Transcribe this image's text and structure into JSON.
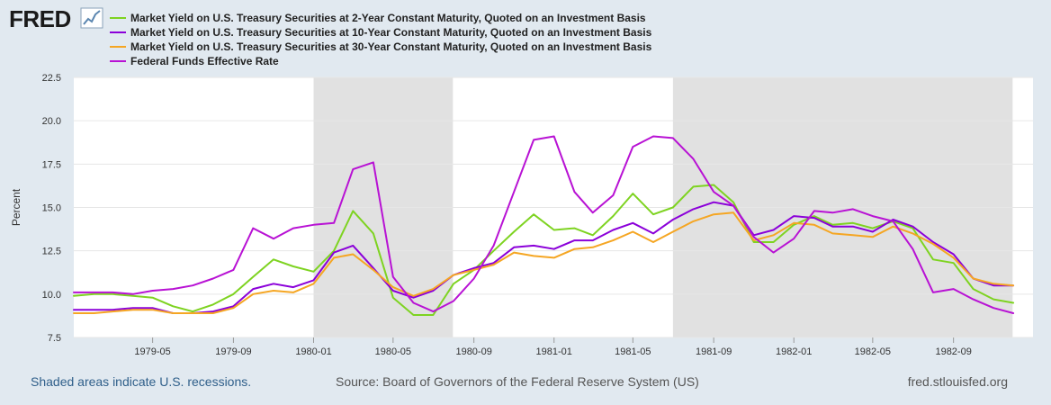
{
  "brand": {
    "name": "FRED"
  },
  "footer": {
    "recession_note": "Shaded areas indicate U.S. recessions.",
    "source": "Source: Board of Governors of the Federal Reserve System (US)",
    "site": "fred.stlouisfed.org"
  },
  "chart_data": {
    "type": "line",
    "title": "",
    "xlabel": "",
    "ylabel": "Percent",
    "ylim": [
      7.5,
      22.5
    ],
    "xlim": [
      "1979-01-01",
      "1982-12-31"
    ],
    "yticks": [
      7.5,
      10.0,
      12.5,
      15.0,
      17.5,
      20.0,
      22.5
    ],
    "ytick_labels": [
      "7.5",
      "10.0",
      "12.5",
      "15.0",
      "17.5",
      "20.0",
      "22.5"
    ],
    "xticks": [
      "1979-05-01",
      "1979-09-01",
      "1980-01-01",
      "1980-05-01",
      "1980-09-01",
      "1981-01-01",
      "1981-05-01",
      "1981-09-01",
      "1982-01-01",
      "1982-05-01",
      "1982-09-01"
    ],
    "xtick_labels": [
      "1979-05",
      "1979-09",
      "1980-01",
      "1980-05",
      "1980-09",
      "1981-01",
      "1981-05",
      "1981-09",
      "1982-01",
      "1982-05",
      "1982-09"
    ],
    "recessions": [
      {
        "start": "1980-01-01",
        "end": "1980-07-31"
      },
      {
        "start": "1981-07-01",
        "end": "1982-11-30"
      }
    ],
    "series": [
      {
        "name": "Market Yield on U.S. Treasury Securities at 2-Year Constant Maturity, Quoted on an Investment Basis",
        "color": "#7ed321",
        "points": [
          [
            "1979-01-01",
            9.9
          ],
          [
            "1979-02-01",
            10.0
          ],
          [
            "1979-03-01",
            10.0
          ],
          [
            "1979-04-01",
            9.9
          ],
          [
            "1979-05-01",
            9.8
          ],
          [
            "1979-06-01",
            9.3
          ],
          [
            "1979-07-01",
            9.0
          ],
          [
            "1979-08-01",
            9.4
          ],
          [
            "1979-09-01",
            10.0
          ],
          [
            "1979-10-01",
            11.0
          ],
          [
            "1979-11-01",
            12.0
          ],
          [
            "1979-12-01",
            11.6
          ],
          [
            "1980-01-01",
            11.3
          ],
          [
            "1980-02-01",
            12.5
          ],
          [
            "1980-03-01",
            14.8
          ],
          [
            "1980-04-01",
            13.5
          ],
          [
            "1980-05-01",
            9.8
          ],
          [
            "1980-06-01",
            8.8
          ],
          [
            "1980-07-01",
            8.8
          ],
          [
            "1980-08-01",
            10.6
          ],
          [
            "1980-09-01",
            11.4
          ],
          [
            "1980-10-01",
            12.5
          ],
          [
            "1980-11-01",
            13.6
          ],
          [
            "1980-12-01",
            14.6
          ],
          [
            "1981-01-01",
            13.7
          ],
          [
            "1981-02-01",
            13.8
          ],
          [
            "1981-03-01",
            13.4
          ],
          [
            "1981-04-01",
            14.5
          ],
          [
            "1981-05-01",
            15.8
          ],
          [
            "1981-06-01",
            14.6
          ],
          [
            "1981-07-01",
            15.0
          ],
          [
            "1981-08-01",
            16.2
          ],
          [
            "1981-09-01",
            16.3
          ],
          [
            "1981-10-01",
            15.3
          ],
          [
            "1981-11-01",
            13.0
          ],
          [
            "1981-12-01",
            13.0
          ],
          [
            "1982-01-01",
            14.0
          ],
          [
            "1982-02-01",
            14.5
          ],
          [
            "1982-03-01",
            14.0
          ],
          [
            "1982-04-01",
            14.1
          ],
          [
            "1982-05-01",
            13.8
          ],
          [
            "1982-06-01",
            14.2
          ],
          [
            "1982-07-01",
            13.8
          ],
          [
            "1982-08-01",
            12.0
          ],
          [
            "1982-09-01",
            11.8
          ],
          [
            "1982-10-01",
            10.3
          ],
          [
            "1982-11-01",
            9.7
          ],
          [
            "1982-12-01",
            9.5
          ]
        ]
      },
      {
        "name": "Market Yield on U.S. Treasury Securities at 10-Year Constant Maturity, Quoted on an Investment Basis",
        "color": "#8b00d9",
        "points": [
          [
            "1979-01-01",
            9.1
          ],
          [
            "1979-02-01",
            9.1
          ],
          [
            "1979-03-01",
            9.1
          ],
          [
            "1979-04-01",
            9.2
          ],
          [
            "1979-05-01",
            9.2
          ],
          [
            "1979-06-01",
            8.9
          ],
          [
            "1979-07-01",
            8.9
          ],
          [
            "1979-08-01",
            9.0
          ],
          [
            "1979-09-01",
            9.3
          ],
          [
            "1979-10-01",
            10.3
          ],
          [
            "1979-11-01",
            10.6
          ],
          [
            "1979-12-01",
            10.4
          ],
          [
            "1980-01-01",
            10.8
          ],
          [
            "1980-02-01",
            12.4
          ],
          [
            "1980-03-01",
            12.8
          ],
          [
            "1980-04-01",
            11.5
          ],
          [
            "1980-05-01",
            10.2
          ],
          [
            "1980-06-01",
            9.8
          ],
          [
            "1980-07-01",
            10.2
          ],
          [
            "1980-08-01",
            11.1
          ],
          [
            "1980-09-01",
            11.5
          ],
          [
            "1980-10-01",
            11.8
          ],
          [
            "1980-11-01",
            12.7
          ],
          [
            "1980-12-01",
            12.8
          ],
          [
            "1981-01-01",
            12.6
          ],
          [
            "1981-02-01",
            13.1
          ],
          [
            "1981-03-01",
            13.1
          ],
          [
            "1981-04-01",
            13.7
          ],
          [
            "1981-05-01",
            14.1
          ],
          [
            "1981-06-01",
            13.5
          ],
          [
            "1981-07-01",
            14.3
          ],
          [
            "1981-08-01",
            14.9
          ],
          [
            "1981-09-01",
            15.3
          ],
          [
            "1981-10-01",
            15.1
          ],
          [
            "1981-11-01",
            13.4
          ],
          [
            "1981-12-01",
            13.7
          ],
          [
            "1982-01-01",
            14.5
          ],
          [
            "1982-02-01",
            14.4
          ],
          [
            "1982-03-01",
            13.9
          ],
          [
            "1982-04-01",
            13.9
          ],
          [
            "1982-05-01",
            13.6
          ],
          [
            "1982-06-01",
            14.3
          ],
          [
            "1982-07-01",
            13.9
          ],
          [
            "1982-08-01",
            13.0
          ],
          [
            "1982-09-01",
            12.3
          ],
          [
            "1982-10-01",
            10.9
          ],
          [
            "1982-11-01",
            10.5
          ],
          [
            "1982-12-01",
            10.5
          ]
        ]
      },
      {
        "name": "Market Yield on U.S. Treasury Securities at 30-Year Constant Maturity, Quoted on an Investment Basis",
        "color": "#f5a623",
        "points": [
          [
            "1979-01-01",
            8.9
          ],
          [
            "1979-02-01",
            8.9
          ],
          [
            "1979-03-01",
            9.0
          ],
          [
            "1979-04-01",
            9.1
          ],
          [
            "1979-05-01",
            9.1
          ],
          [
            "1979-06-01",
            8.9
          ],
          [
            "1979-07-01",
            8.9
          ],
          [
            "1979-08-01",
            8.9
          ],
          [
            "1979-09-01",
            9.2
          ],
          [
            "1979-10-01",
            10.0
          ],
          [
            "1979-11-01",
            10.2
          ],
          [
            "1979-12-01",
            10.1
          ],
          [
            "1980-01-01",
            10.6
          ],
          [
            "1980-02-01",
            12.1
          ],
          [
            "1980-03-01",
            12.3
          ],
          [
            "1980-04-01",
            11.4
          ],
          [
            "1980-05-01",
            10.4
          ],
          [
            "1980-06-01",
            9.9
          ],
          [
            "1980-07-01",
            10.3
          ],
          [
            "1980-08-01",
            11.1
          ],
          [
            "1980-09-01",
            11.4
          ],
          [
            "1980-10-01",
            11.7
          ],
          [
            "1980-11-01",
            12.4
          ],
          [
            "1980-12-01",
            12.2
          ],
          [
            "1981-01-01",
            12.1
          ],
          [
            "1981-02-01",
            12.6
          ],
          [
            "1981-03-01",
            12.7
          ],
          [
            "1981-04-01",
            13.1
          ],
          [
            "1981-05-01",
            13.6
          ],
          [
            "1981-06-01",
            13.0
          ],
          [
            "1981-07-01",
            13.6
          ],
          [
            "1981-08-01",
            14.2
          ],
          [
            "1981-09-01",
            14.6
          ],
          [
            "1981-10-01",
            14.7
          ],
          [
            "1981-11-01",
            13.1
          ],
          [
            "1981-12-01",
            13.4
          ],
          [
            "1982-01-01",
            14.1
          ],
          [
            "1982-02-01",
            14.0
          ],
          [
            "1982-03-01",
            13.5
          ],
          [
            "1982-04-01",
            13.4
          ],
          [
            "1982-05-01",
            13.3
          ],
          [
            "1982-06-01",
            13.9
          ],
          [
            "1982-07-01",
            13.5
          ],
          [
            "1982-08-01",
            12.9
          ],
          [
            "1982-09-01",
            12.1
          ],
          [
            "1982-10-01",
            10.9
          ],
          [
            "1982-11-01",
            10.6
          ],
          [
            "1982-12-01",
            10.5
          ]
        ]
      },
      {
        "name": "Federal Funds Effective Rate",
        "color": "#b812d4",
        "points": [
          [
            "1979-01-01",
            10.1
          ],
          [
            "1979-02-01",
            10.1
          ],
          [
            "1979-03-01",
            10.1
          ],
          [
            "1979-04-01",
            10.0
          ],
          [
            "1979-05-01",
            10.2
          ],
          [
            "1979-06-01",
            10.3
          ],
          [
            "1979-07-01",
            10.5
          ],
          [
            "1979-08-01",
            10.9
          ],
          [
            "1979-09-01",
            11.4
          ],
          [
            "1979-10-01",
            13.8
          ],
          [
            "1979-11-01",
            13.2
          ],
          [
            "1979-12-01",
            13.8
          ],
          [
            "1980-01-01",
            14.0
          ],
          [
            "1980-02-01",
            14.1
          ],
          [
            "1980-03-01",
            17.2
          ],
          [
            "1980-04-01",
            17.6
          ],
          [
            "1980-05-01",
            11.0
          ],
          [
            "1980-06-01",
            9.5
          ],
          [
            "1980-07-01",
            9.0
          ],
          [
            "1980-08-01",
            9.6
          ],
          [
            "1980-09-01",
            10.9
          ],
          [
            "1980-10-01",
            12.8
          ],
          [
            "1980-11-01",
            15.9
          ],
          [
            "1980-12-01",
            18.9
          ],
          [
            "1981-01-01",
            19.1
          ],
          [
            "1981-02-01",
            15.9
          ],
          [
            "1981-03-01",
            14.7
          ],
          [
            "1981-04-01",
            15.7
          ],
          [
            "1981-05-01",
            18.5
          ],
          [
            "1981-06-01",
            19.1
          ],
          [
            "1981-07-01",
            19.0
          ],
          [
            "1981-08-01",
            17.8
          ],
          [
            "1981-09-01",
            15.9
          ],
          [
            "1981-10-01",
            15.1
          ],
          [
            "1981-11-01",
            13.3
          ],
          [
            "1981-12-01",
            12.4
          ],
          [
            "1982-01-01",
            13.2
          ],
          [
            "1982-02-01",
            14.8
          ],
          [
            "1982-03-01",
            14.7
          ],
          [
            "1982-04-01",
            14.9
          ],
          [
            "1982-05-01",
            14.5
          ],
          [
            "1982-06-01",
            14.2
          ],
          [
            "1982-07-01",
            12.6
          ],
          [
            "1982-08-01",
            10.1
          ],
          [
            "1982-09-01",
            10.3
          ],
          [
            "1982-10-01",
            9.7
          ],
          [
            "1982-11-01",
            9.2
          ],
          [
            "1982-12-01",
            8.9
          ]
        ]
      }
    ]
  }
}
